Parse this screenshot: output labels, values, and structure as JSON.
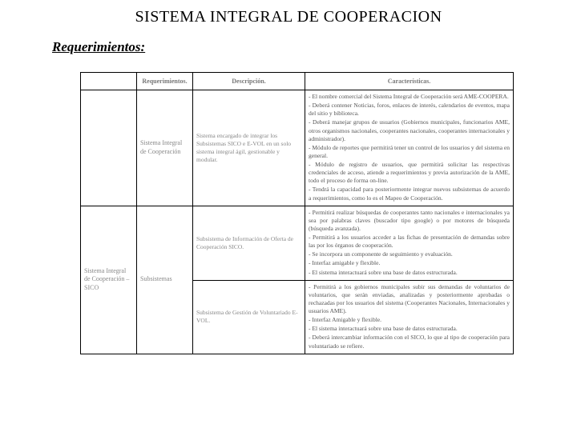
{
  "title": "SISTEMA INTEGRAL DE COOPERACION",
  "subtitle": "Requerimientos:",
  "headers": {
    "c1": "Requerimientos.",
    "c2": "Descripción.",
    "c3": "Características."
  },
  "rows": {
    "r1": {
      "label": "Sistema Integral de Cooperación",
      "desc": "Sistema encargado de integrar los Subsistemas SICO e E-VOL en un solo sistema integral ágil, gestionable y modular.",
      "car_lines": {
        "l0": "- El nombre comercial del Sistema Integral de Cooperación será AME-COOPERA.",
        "l1": "- Deberá contener Noticias, foros, enlaces de interés, calendarios de eventos, mapa del sitio y biblioteca.",
        "l2": "- Deberá manejar grupos de usuarios (Gobiernos municipales, funcionarios AME, otros organismos nacionales, cooperantes nacionales, cooperantes internacionales y administrador).",
        "l3": "- Módulo de reportes que permitirá tener un control de los usuarios y del sistema en general.",
        "l4": "- Módulo de registro de usuarios, que permitirá solicitar las respectivas credenciales de acceso, atiende a requerimientos y previa autorización de la AME, todo el proceso de forma on-line.",
        "l5": "- Tendrá la capacidad para posteriormente integrar nuevos subsistemas de acuerdo a requerimientos, como lo es el Mapeo de Cooperación."
      }
    },
    "r2_outerlabel": "Sistema Integral de Cooperación – SICO",
    "r2a": {
      "desc": "Subsistema de Información de Oferta de Cooperación SICO.",
      "car_lines": {
        "l0": "- Permitirá realizar búsquedas de cooperantes tanto nacionales e internacionales ya sea por palabras claves (buscador tipo google) o por motores de búsqueda (búsqueda avanzada).",
        "l1": "- Permitirá a los usuarios acceder a las fichas de presentación de demandas sobre las por los órganos de cooperación.",
        "l2": "- Se incorpora un componente de seguimiento y evaluación.",
        "l3": "- Interfaz amigable y flexible.",
        "l4": "- El sistema interactuará sobre una base de datos estructurada."
      }
    },
    "r2b_outerlabel": "Subsistemas",
    "r2b": {
      "desc": "Subsistema de Gestión de Voluntariado E-VOL.",
      "car_lines": {
        "l0": "- Permitirá a los gobiernos municipales subir sus demandas de voluntarios de voluntarios, que serán enviadas, analizadas y posteriormente aprobadas o rechazadas por los usuarios del sistema (Cooperantes Nacionales, Internacionales y usuarios AME).",
        "l1": "- Interfaz Amigable y flexible.",
        "l2": "- El sistema interactuará sobre una base de datos estructurada.",
        "l3": "- Deberá intercambiar información con el SICO, lo que al tipo de cooperación para voluntariado se refiere."
      }
    }
  },
  "colors": {
    "border": "#000000",
    "muted": "#888888",
    "text": "#333333"
  }
}
